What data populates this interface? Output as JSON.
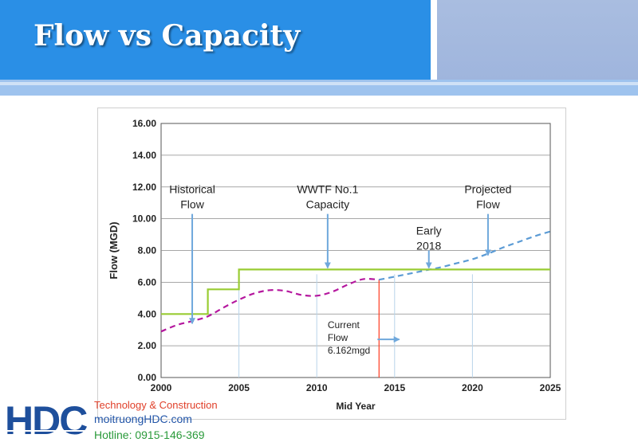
{
  "header": {
    "title": "Flow vs Capacity"
  },
  "footer": {
    "logo_text": "HDC",
    "tagline": "Technology & Construction",
    "website": "moitruongHDC.com",
    "hotline": "Hotline: 0915-146-369"
  },
  "colors": {
    "historical": "#b5179e",
    "projected": "#5b9bd5",
    "capacity": "#99cc33",
    "current_marker": "#ff3b1f",
    "annotation_arrow": "#6fa8dc",
    "vertical_guides": "#b8d4ea"
  },
  "chart_data": {
    "type": "line",
    "xlabel": "Mid Year",
    "ylabel": "Flow (MGD)",
    "xlim": [
      2000,
      2025
    ],
    "ylim": [
      0,
      16
    ],
    "xticks": [
      "2000",
      "2005",
      "2010",
      "2015",
      "2020",
      "2025"
    ],
    "yticks": [
      "0.00",
      "2.00",
      "4.00",
      "6.00",
      "8.00",
      "10.00",
      "12.00",
      "14.00",
      "16.00"
    ],
    "grid": true,
    "series": [
      {
        "style": "dashed",
        "x": [
          2000,
          2001,
          2002,
          2003,
          2004,
          2005,
          2006,
          2007,
          2008,
          2009,
          2010,
          2011,
          2012,
          2013,
          2014
        ],
        "y": [
          2.9,
          3.3,
          3.55,
          3.85,
          4.4,
          4.9,
          5.3,
          5.5,
          5.45,
          5.2,
          5.15,
          5.4,
          5.85,
          6.2,
          6.16
        ]
      },
      {
        "style": "dashed",
        "x": [
          2014,
          2015,
          2016,
          2017,
          2018,
          2019,
          2020,
          2021,
          2022,
          2023,
          2024,
          2025
        ],
        "y": [
          6.16,
          6.35,
          6.55,
          6.75,
          6.95,
          7.2,
          7.45,
          7.8,
          8.2,
          8.55,
          8.9,
          9.2
        ]
      },
      {
        "style": "step",
        "x": [
          2000,
          2003,
          2003,
          2005,
          2005,
          2025
        ],
        "y": [
          4.0,
          4.0,
          5.55,
          5.55,
          6.8,
          6.8
        ]
      }
    ],
    "vertical_lines": [
      {
        "x": 2005,
        "kind": "guide"
      },
      {
        "x": 2010,
        "kind": "guide"
      },
      {
        "x": 2014,
        "kind": "current"
      },
      {
        "x": 2015,
        "kind": "guide"
      },
      {
        "x": 2020,
        "kind": "guide"
      }
    ],
    "annotations": [
      {
        "lines": [
          "Historical",
          "Flow"
        ],
        "text_x": 2002,
        "text_y": 11.6,
        "arrow_from": [
          2002,
          10.3
        ],
        "arrow_to": [
          2002,
          3.4
        ],
        "anchor": "middle"
      },
      {
        "lines": [
          "WWTF No.1",
          "Capacity"
        ],
        "text_x": 2010.7,
        "text_y": 11.6,
        "arrow_from": [
          2010.7,
          10.3
        ],
        "arrow_to": [
          2010.7,
          6.9
        ],
        "anchor": "middle"
      },
      {
        "lines": [
          "Projected",
          "Flow"
        ],
        "text_x": 2021,
        "text_y": 11.6,
        "arrow_from": [
          2021,
          10.3
        ],
        "arrow_to": [
          2021,
          7.7
        ],
        "anchor": "middle"
      },
      {
        "lines": [
          "Early",
          "2018"
        ],
        "text_x": 2017.2,
        "text_y": 9.0,
        "arrow_from": [
          2017.2,
          8.0
        ],
        "arrow_to": [
          2017.2,
          6.9
        ],
        "anchor": "middle"
      },
      {
        "lines": [
          "Current",
          "Flow",
          "6.162mgd"
        ],
        "text_x": 2010.7,
        "text_y": 3.1,
        "arrow_from": [
          2013.9,
          2.4
        ],
        "arrow_to": [
          2015.3,
          2.4
        ],
        "anchor": "start"
      }
    ]
  }
}
